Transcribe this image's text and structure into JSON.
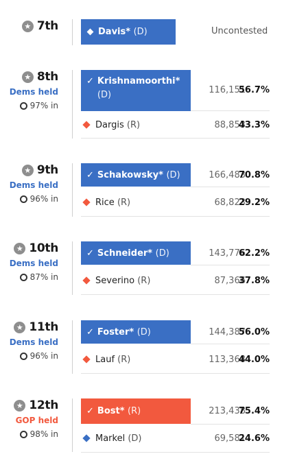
{
  "races": [
    {
      "district": "7th",
      "uncontested": true,
      "winner": {
        "name": "Davis*",
        "party": "(D)"
      },
      "status_text": "Uncontested"
    },
    {
      "district": "8th",
      "held": "Dems held",
      "pct_in": "97% in",
      "winner": {
        "name": "Krishnamoorthi*",
        "party": "(D)",
        "votes": "116,151",
        "pct": "56.7%"
      },
      "loser": {
        "name": "Dargis",
        "party": "(R)",
        "votes": "88,853",
        "pct": "43.3%"
      }
    },
    {
      "district": "9th",
      "held": "Dems held",
      "pct_in": "96% in",
      "winner": {
        "name": "Schakowsky*",
        "party": "(D)",
        "votes": "166,483",
        "pct": "70.8%"
      },
      "loser": {
        "name": "Rice",
        "party": "(R)",
        "votes": "68,823",
        "pct": "29.2%"
      }
    },
    {
      "district": "10th",
      "held": "Dems held",
      "pct_in": "87% in",
      "winner": {
        "name": "Schneider*",
        "party": "(D)",
        "votes": "143,776",
        "pct": "62.2%"
      },
      "loser": {
        "name": "Severino",
        "party": "(R)",
        "votes": "87,366",
        "pct": "37.8%"
      }
    },
    {
      "district": "11th",
      "held": "Dems held",
      "pct_in": "96% in",
      "winner": {
        "name": "Foster*",
        "party": "(D)",
        "votes": "144,387",
        "pct": "56.0%"
      },
      "loser": {
        "name": "Lauf",
        "party": "(R)",
        "votes": "113,368",
        "pct": "44.0%"
      }
    },
    {
      "district": "12th",
      "held": "GOP held",
      "pct_in": "98% in",
      "winner": {
        "name": "Bost*",
        "party": "(R)",
        "votes": "213,438",
        "pct": "75.4%"
      },
      "loser": {
        "name": "Markel",
        "party": "(D)",
        "votes": "69,581",
        "pct": "24.6%"
      }
    }
  ],
  "icons": {
    "star": "★",
    "check": "✓",
    "diamond": "diamond-icon"
  },
  "colors": {
    "dem": "#3a6fc4",
    "gop": "#f2593e"
  }
}
